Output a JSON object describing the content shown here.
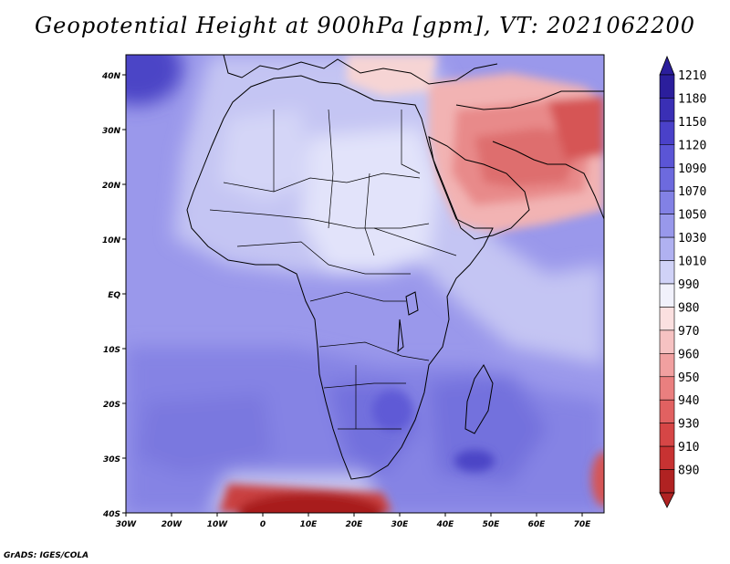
{
  "title": "Geopotential Height at 900hPa [gpm], VT: 2021062200",
  "credit": "GrADS: IGES/COLA",
  "map": {
    "lon_range": [
      -30,
      75
    ],
    "lat_range": [
      -40,
      45
    ],
    "lon_ticks": [
      "30W",
      "20W",
      "10W",
      "0",
      "10E",
      "20E",
      "30E",
      "40E",
      "50E",
      "60E",
      "70E"
    ],
    "lat_ticks": [
      "40S",
      "30S",
      "20S",
      "10S",
      "EQ",
      "10N",
      "20N",
      "30N",
      "40N"
    ]
  },
  "colorbar": {
    "labels": [
      "1210",
      "1180",
      "1150",
      "1120",
      "1090",
      "1070",
      "1050",
      "1030",
      "1010",
      "990",
      "980",
      "970",
      "960",
      "950",
      "940",
      "930",
      "910",
      "890"
    ],
    "colors": [
      "#2b1e9c",
      "#3a2fb5",
      "#4a41c9",
      "#5b55d6",
      "#6d6ade",
      "#8281e5",
      "#9898eb",
      "#b0b1f1",
      "#d0d2f7",
      "#f1f1fb",
      "#fbe0e0",
      "#f6c2c2",
      "#f1a0a0",
      "#ea7f7f",
      "#e16161",
      "#d64646",
      "#c73232",
      "#b02222"
    ]
  }
}
